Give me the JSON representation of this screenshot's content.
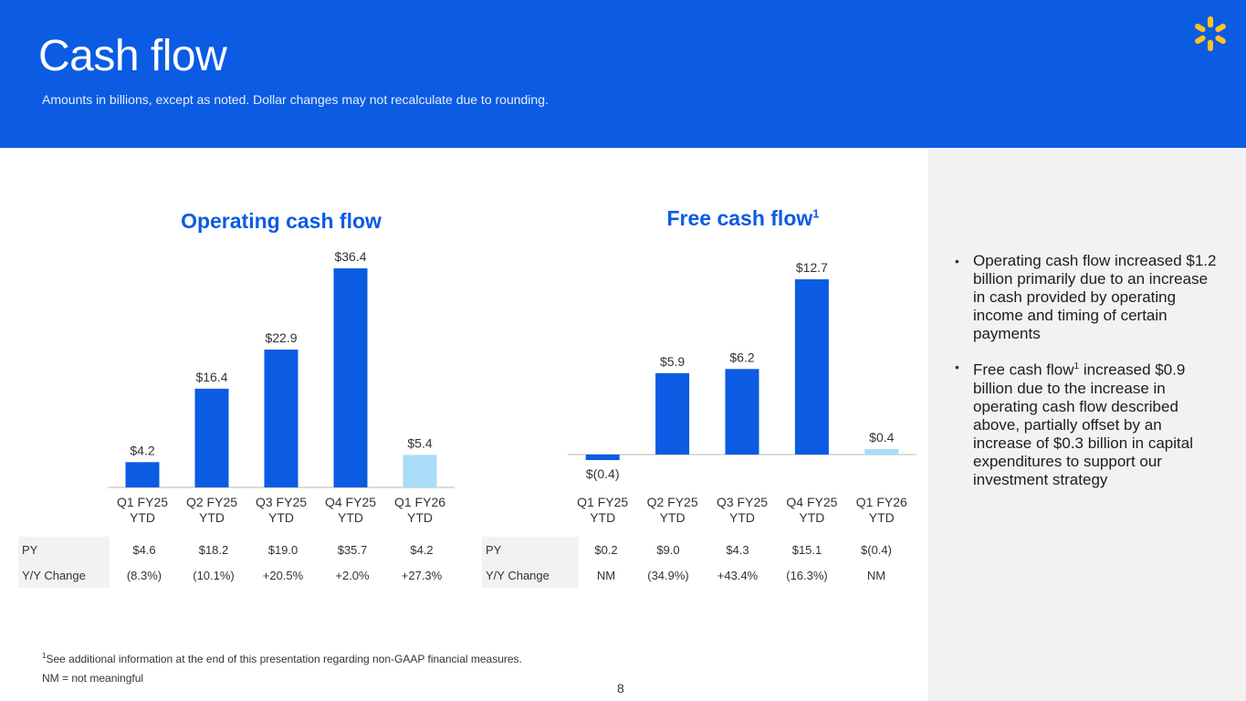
{
  "header": {
    "title": "Cash flow",
    "subtitle": "Amounts in billions, except as noted.  Dollar changes may not recalculate due to rounding."
  },
  "logo": {
    "icon": "walmart-spark-icon",
    "color": "#ffc220"
  },
  "colors": {
    "brand_blue": "#0b5be3",
    "highlight_bar": "#a9dcf7",
    "panel_gray": "#f2f2f2"
  },
  "chart_data": [
    {
      "type": "bar",
      "title": "Operating cash flow",
      "categories": [
        [
          "Q1 FY25",
          "YTD"
        ],
        [
          "Q2 FY25",
          "YTD"
        ],
        [
          "Q3 FY25",
          "YTD"
        ],
        [
          "Q4 FY25",
          "YTD"
        ],
        [
          "Q1 FY26",
          "YTD"
        ]
      ],
      "values": [
        4.2,
        16.4,
        22.9,
        36.4,
        5.4
      ],
      "value_labels": [
        "$4.2",
        "$16.4",
        "$22.9",
        "$36.4",
        "$5.4"
      ],
      "highlight_index": 4,
      "ylim": [
        0,
        36.4
      ],
      "table": {
        "rows": [
          {
            "label": "PY",
            "cells": [
              "$4.6",
              "$18.2",
              "$19.0",
              "$35.7",
              "$4.2"
            ]
          },
          {
            "label": "Y/Y Change",
            "cells": [
              "(8.3%)",
              "(10.1%)",
              "+20.5%",
              "+2.0%",
              "+27.3%"
            ]
          }
        ]
      }
    },
    {
      "type": "bar",
      "title": "Free cash flow",
      "title_sup": "1",
      "categories": [
        [
          "Q1 FY25",
          "YTD"
        ],
        [
          "Q2 FY25",
          "YTD"
        ],
        [
          "Q3 FY25",
          "YTD"
        ],
        [
          "Q4 FY25",
          "YTD"
        ],
        [
          "Q1 FY26",
          "YTD"
        ]
      ],
      "values": [
        -0.4,
        5.9,
        6.2,
        12.7,
        0.4
      ],
      "value_labels": [
        "$(0.4)",
        "$5.9",
        "$6.2",
        "$12.7",
        "$0.4"
      ],
      "highlight_index": 4,
      "ylim": [
        -0.4,
        12.7
      ],
      "table": {
        "rows": [
          {
            "label": "PY",
            "cells": [
              "$0.2",
              "$9.0",
              "$4.3",
              "$15.1",
              "$(0.4)"
            ]
          },
          {
            "label": "Y/Y Change",
            "cells": [
              "NM",
              "(34.9%)",
              "+43.4%",
              "(16.3%)",
              "NM"
            ]
          }
        ]
      }
    }
  ],
  "bullets": [
    {
      "text": "Operating cash flow increased $1.2 billion primarily due to an increase in cash provided by operating income and timing of certain payments"
    },
    {
      "pre": "Free cash flow",
      "sup": "1",
      "post": " increased $0.9 billion due to the increase in operating cash flow described above, partially offset by an increase of $0.3 billion in capital expenditures to support our investment strategy"
    }
  ],
  "footnotes": {
    "sup": "1",
    "note1": "See additional information at the end of this presentation regarding non-GAAP financial measures.",
    "note2": "NM = not meaningful"
  },
  "page_number": "8"
}
